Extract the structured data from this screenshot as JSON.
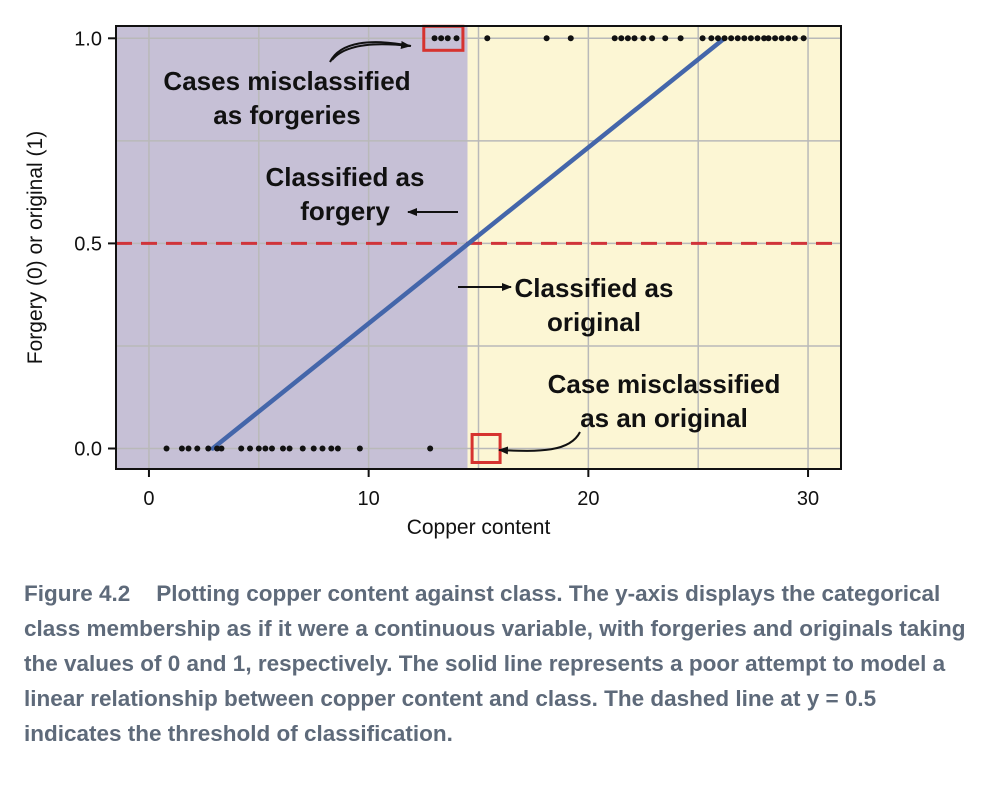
{
  "chart_data": {
    "type": "scatter",
    "xlabel": "Copper content",
    "ylabel": "Forgery (0) or original (1)",
    "xlim": [
      -1.5,
      31.5
    ],
    "ylim": [
      -0.05,
      1.03
    ],
    "x_ticks": [
      0,
      10,
      20,
      30
    ],
    "y_ticks": [
      0.0,
      0.5,
      1.0
    ],
    "x_tick_labels": [
      "0",
      "10",
      "20",
      "30"
    ],
    "y_tick_labels": [
      "0.0",
      "0.5",
      "1.0"
    ],
    "grid": true,
    "x_grid_minor": [
      5,
      15,
      25
    ],
    "y_grid_minor": [
      0.25,
      0.75
    ],
    "decision_boundary_x": 14.5,
    "regions": [
      {
        "name": "Classified as forgery",
        "x_range": [
          -1.5,
          14.5
        ],
        "color": "#c6c0d6"
      },
      {
        "name": "Classified as original",
        "x_range": [
          14.5,
          31.5
        ],
        "color": "#fcf6d4"
      }
    ],
    "threshold_line": {
      "y": 0.5,
      "color": "#d0343a",
      "style": "dashed"
    },
    "fit_line": {
      "x": [
        2.9,
        26.2
      ],
      "y": [
        0.0,
        1.0
      ],
      "color": "#4466aa"
    },
    "forgeries": {
      "y": 0,
      "x": [
        0.8,
        1.5,
        1.8,
        2.2,
        2.7,
        3.1,
        3.3,
        4.2,
        4.6,
        5.0,
        5.3,
        5.6,
        6.1,
        6.4,
        7.0,
        7.5,
        7.9,
        8.3,
        8.6,
        9.6,
        12.8
      ]
    },
    "originals": {
      "y": 1,
      "x": [
        13.0,
        13.3,
        13.6,
        14.0,
        15.4,
        18.1,
        19.2,
        21.2,
        21.5,
        21.8,
        22.1,
        22.5,
        22.9,
        23.5,
        24.2,
        25.2,
        25.6,
        25.9,
        26.2,
        26.5,
        26.8,
        27.1,
        27.4,
        27.7,
        28.0,
        28.2,
        28.5,
        28.8,
        29.1,
        29.4,
        29.8
      ]
    },
    "misclassified_originals_box": {
      "x_range": [
        12.6,
        14.2
      ],
      "y": 1
    },
    "misclassified_forgery": {
      "x": 15.3,
      "y": 0
    },
    "annotations": {
      "cases_misclassified": [
        "Cases misclassified",
        "as forgeries"
      ],
      "classified_forgery": [
        "Classified as",
        "forgery"
      ],
      "classified_original": [
        "Classified as",
        "original"
      ],
      "case_misclassified": [
        "Case misclassified",
        "as an original"
      ]
    },
    "colors": {
      "point": "#111111",
      "highlight_box": "#d6332f",
      "grid": "#b9b9b9",
      "axis": "#111111"
    }
  },
  "caption": {
    "label": "Figure 4.2",
    "text": "Plotting copper content against class. The y-axis displays the categorical class membership as if it were a continuous variable, with forgeries and originals taking the values of 0 and 1, respectively. The solid line represents a poor attempt to model a linear relationship between copper content and class. The dashed line at y = 0.5 indicates the threshold of classification."
  }
}
